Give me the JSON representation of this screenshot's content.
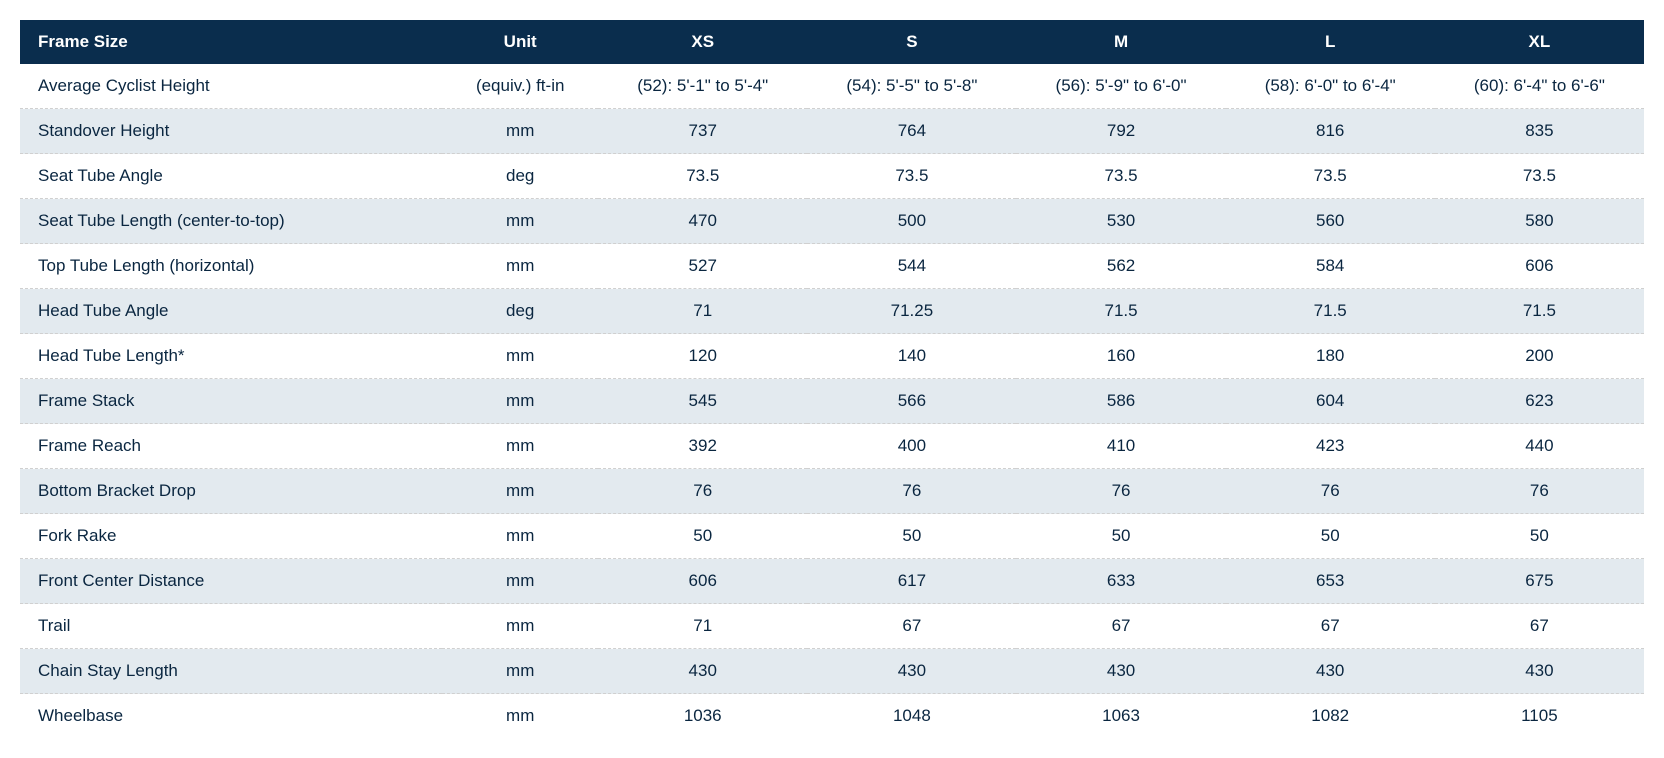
{
  "geometry_table": {
    "type": "table",
    "header_bg": "#0a2d4d",
    "header_fg": "#ffffff",
    "row_alt_bg": "#e3eaef",
    "text_color": "#0a2640",
    "border_color": "#d0d0d0",
    "columns": [
      "Frame Size",
      "Unit",
      "XS",
      "S",
      "M",
      "L",
      "XL"
    ],
    "rows": [
      {
        "label": "Average Cyclist Height",
        "unit": "(equiv.) ft-in",
        "values": [
          "(52): 5'-1\" to 5'-4\"",
          "(54): 5'-5\" to 5'-8\"",
          "(56): 5'-9\" to 6'-0\"",
          "(58): 6'-0\" to 6'-4\"",
          "(60): 6'-4\" to 6'-6\""
        ]
      },
      {
        "label": "Standover Height",
        "unit": "mm",
        "values": [
          "737",
          "764",
          "792",
          "816",
          "835"
        ]
      },
      {
        "label": "Seat Tube Angle",
        "unit": "deg",
        "values": [
          "73.5",
          "73.5",
          "73.5",
          "73.5",
          "73.5"
        ]
      },
      {
        "label": "Seat Tube Length (center-to-top)",
        "unit": "mm",
        "values": [
          "470",
          "500",
          "530",
          "560",
          "580"
        ]
      },
      {
        "label": "Top Tube Length (horizontal)",
        "unit": "mm",
        "values": [
          "527",
          "544",
          "562",
          "584",
          "606"
        ]
      },
      {
        "label": "Head Tube Angle",
        "unit": "deg",
        "values": [
          "71",
          "71.25",
          "71.5",
          "71.5",
          "71.5"
        ]
      },
      {
        "label": "Head Tube Length*",
        "unit": "mm",
        "values": [
          "120",
          "140",
          "160",
          "180",
          "200"
        ]
      },
      {
        "label": "Frame Stack",
        "unit": "mm",
        "values": [
          "545",
          "566",
          "586",
          "604",
          "623"
        ]
      },
      {
        "label": "Frame Reach",
        "unit": "mm",
        "values": [
          "392",
          "400",
          "410",
          "423",
          "440"
        ]
      },
      {
        "label": "Bottom Bracket Drop",
        "unit": "mm",
        "values": [
          "76",
          "76",
          "76",
          "76",
          "76"
        ]
      },
      {
        "label": "Fork Rake",
        "unit": "mm",
        "values": [
          "50",
          "50",
          "50",
          "50",
          "50"
        ]
      },
      {
        "label": "Front Center Distance",
        "unit": "mm",
        "values": [
          "606",
          "617",
          "633",
          "653",
          "675"
        ]
      },
      {
        "label": "Trail",
        "unit": "mm",
        "values": [
          "71",
          "67",
          "67",
          "67",
          "67"
        ]
      },
      {
        "label": "Chain Stay Length",
        "unit": "mm",
        "values": [
          "430",
          "430",
          "430",
          "430",
          "430"
        ]
      },
      {
        "label": "Wheelbase",
        "unit": "mm",
        "values": [
          "1036",
          "1048",
          "1063",
          "1082",
          "1105"
        ]
      }
    ]
  }
}
